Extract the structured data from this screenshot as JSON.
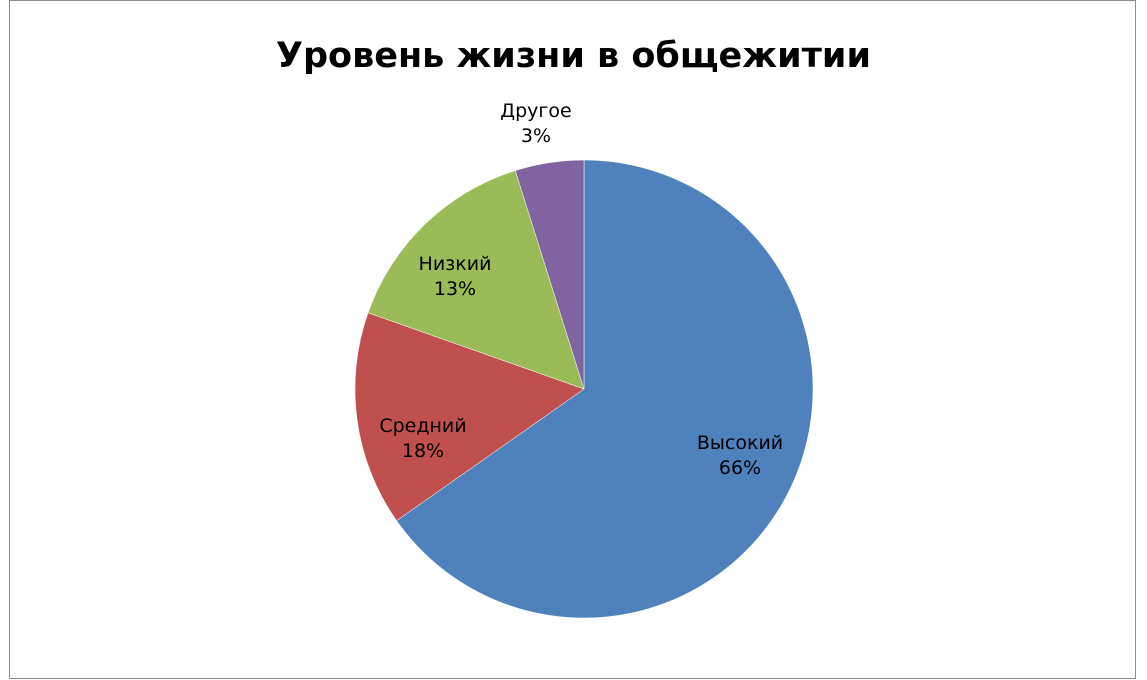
{
  "chart_data": {
    "type": "pie",
    "title": "Уровень жизни в общежитии",
    "slices": [
      {
        "label": "Высокий",
        "value": 66,
        "value_label": "66%",
        "color": "#4f81bd"
      },
      {
        "label": "Средний",
        "value": 18,
        "value_label": "18%",
        "color": "#c0504d"
      },
      {
        "label": "Низкий",
        "value": 13,
        "value_label": "13%",
        "color": "#9bbb59"
      },
      {
        "label": "Другое",
        "value": 3,
        "value_label": "3%",
        "color": "#8064a2"
      }
    ],
    "start": "12 o'clock",
    "direction": "clockwise",
    "data_labels": "category and percentage",
    "legend": "none"
  }
}
